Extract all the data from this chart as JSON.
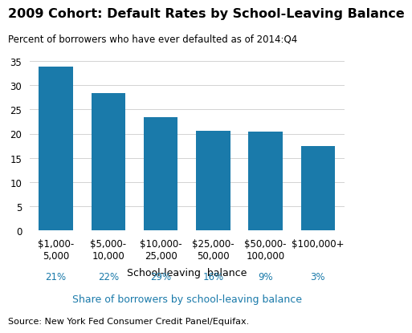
{
  "title": "2009 Cohort: Default Rates by School-Leaving Balance",
  "subtitle": "Percent of borrowers who have ever defaulted as of 2014:Q4",
  "xlabel": "School-leaving  balance",
  "source": "Source: New York Fed Consumer Credit Panel/Equifax.",
  "categories": [
    "$1,000-\n5,000",
    "$5,000-\n10,000",
    "$10,000-\n25,000",
    "$25,000-\n50,000",
    "$50,000-\n100,000",
    "$100,000+"
  ],
  "values": [
    33.9,
    28.4,
    23.4,
    20.6,
    20.5,
    17.4
  ],
  "bar_color": "#1a7aaa",
  "shares": [
    "21%",
    "22%",
    "29%",
    "16%",
    "9%",
    "3%"
  ],
  "shares_label": "Share of borrowers by school-leaving balance",
  "shares_color": "#1a7aaa",
  "ylim": [
    0,
    35
  ],
  "yticks": [
    0,
    5,
    10,
    15,
    20,
    25,
    30,
    35
  ],
  "title_fontsize": 11.5,
  "subtitle_fontsize": 8.5,
  "axis_label_fontsize": 9,
  "tick_fontsize": 8.5,
  "source_fontsize": 8
}
